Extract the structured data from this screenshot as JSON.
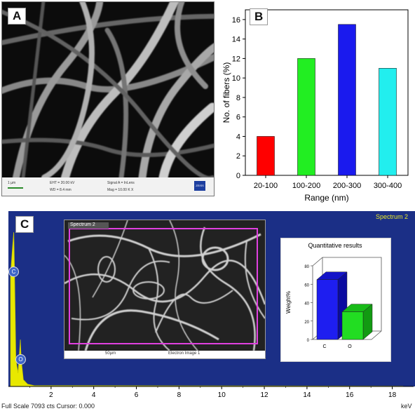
{
  "panel_a": {
    "label": "A",
    "info": {
      "scale": "1 µm",
      "eht": "EHT = 20.00 kV",
      "wd": "WD = 8.4 mm",
      "signal": "Signal A = InLens",
      "mag": "Mag = 10.00 K X",
      "logo": "ZEISS"
    }
  },
  "panel_b": {
    "label": "B"
  },
  "panel_c": {
    "label": "C",
    "spectrum_label": "Spectrum 2",
    "inset_title": "Spectrum 2",
    "inset_scale": "50µm",
    "inset_caption": "Electron Image 1",
    "footer_text": "Full Scale 7093 cts Cursor: 0.000",
    "unit": "keV",
    "peak_markers": [
      "C",
      "O"
    ]
  },
  "chart_data": [
    {
      "type": "bar",
      "panel": "B",
      "categories": [
        "20-100",
        "100-200",
        "200-300",
        "300-400"
      ],
      "values": [
        4,
        12,
        15.5,
        11
      ],
      "colors": [
        "#ff0000",
        "#22ee22",
        "#1a1aee",
        "#22eeee"
      ],
      "xlabel": "Range (nm)",
      "ylabel": "No. of fibers (%)",
      "ylim": [
        0,
        17
      ],
      "yticks": [
        0,
        2,
        4,
        6,
        8,
        10,
        12,
        14,
        16
      ]
    },
    {
      "type": "bar",
      "panel": "C inset",
      "title": "Quantitative results",
      "categories": [
        "C",
        "O"
      ],
      "values": [
        65,
        30
      ],
      "colors": [
        "#1e1ef0",
        "#22dd22"
      ],
      "ylabel": "Weight%",
      "ylim": [
        0,
        80
      ],
      "yticks": [
        0,
        20,
        40,
        60,
        80
      ]
    },
    {
      "type": "area",
      "panel": "C spectrum",
      "x": [
        0.1,
        0.2,
        0.25,
        0.28,
        0.35,
        0.45,
        0.52,
        0.56,
        0.6,
        0.7,
        0.9,
        1.2,
        18.5
      ],
      "values": [
        5000,
        6300,
        6900,
        5500,
        1200,
        600,
        1500,
        2100,
        1200,
        300,
        100,
        40,
        10
      ],
      "xlabel": "keV",
      "xlim": [
        0,
        19
      ],
      "xticks": [
        2,
        4,
        6,
        8,
        10,
        12,
        14,
        16,
        18
      ],
      "full_scale": 7093
    }
  ]
}
